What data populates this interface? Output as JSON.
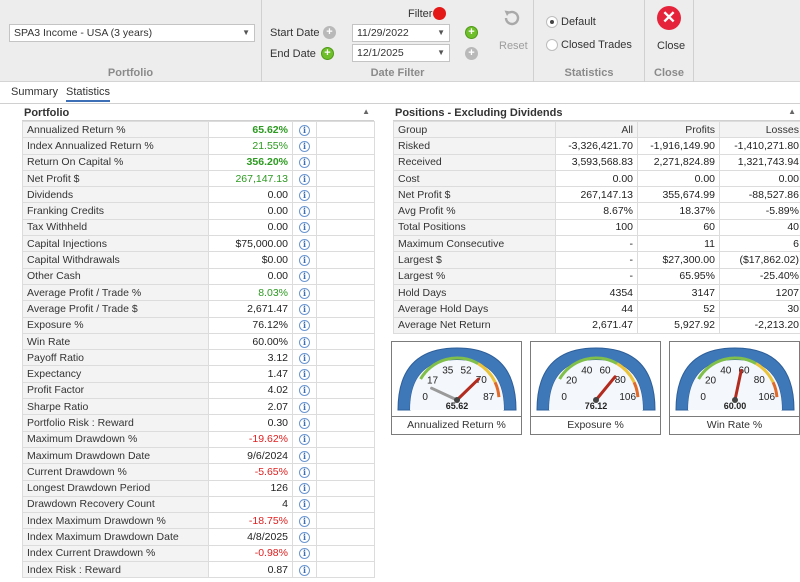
{
  "ribbon": {
    "portfolio": {
      "selected": "SPA3 Income - USA (3 years)",
      "group_label": "Portfolio"
    },
    "date_filter": {
      "filter_label": "Filter",
      "start_label": "Start Date",
      "start_value": "11/29/2022",
      "end_label": "End Date",
      "end_value": "12/1/2025",
      "reset_label": "Reset",
      "group_label": "Date Filter"
    },
    "statistics": {
      "default_label": "Default",
      "closed_label": "Closed Trades",
      "group_label": "Statistics"
    },
    "close": {
      "button_label": "Close",
      "group_label": "Close"
    }
  },
  "tabs": [
    "Summary",
    "Statistics"
  ],
  "portfolio_panel": {
    "title": "Portfolio",
    "rows": [
      {
        "name": "Annualized Return %",
        "value": "65.62%",
        "color": "#2c9a20",
        "bold": true
      },
      {
        "name": "Index Annualized Return %",
        "value": "21.55%",
        "color": "#2c9a20",
        "bold": false
      },
      {
        "name": "Return On Capital %",
        "value": "356.20%",
        "color": "#2c9a20",
        "bold": true
      },
      {
        "name": "Net Profit $",
        "value": "267,147.13",
        "color": "#2c9a20",
        "bold": false
      },
      {
        "name": "Dividends",
        "value": "0.00",
        "color": "#222222",
        "bold": false
      },
      {
        "name": "Franking Credits",
        "value": "0.00",
        "color": "#222222",
        "bold": false
      },
      {
        "name": "Tax Withheld",
        "value": "0.00",
        "color": "#222222",
        "bold": false
      },
      {
        "name": "Capital Injections",
        "value": "$75,000.00",
        "color": "#222222",
        "bold": false
      },
      {
        "name": "Capital Withdrawals",
        "value": "$0.00",
        "color": "#222222",
        "bold": false
      },
      {
        "name": "Other Cash",
        "value": "0.00",
        "color": "#222222",
        "bold": false
      },
      {
        "name": "Average Profit / Trade %",
        "value": "8.03%",
        "color": "#2c9a20",
        "bold": false
      },
      {
        "name": "Average Profit / Trade $",
        "value": "2,671.47",
        "color": "#222222",
        "bold": false
      },
      {
        "name": "Exposure %",
        "value": "76.12%",
        "color": "#222222",
        "bold": false
      },
      {
        "name": "Win Rate",
        "value": "60.00%",
        "color": "#222222",
        "bold": false
      },
      {
        "name": "Payoff Ratio",
        "value": "3.12",
        "color": "#222222",
        "bold": false
      },
      {
        "name": "Expectancy",
        "value": "1.47",
        "color": "#222222",
        "bold": false
      },
      {
        "name": "Profit Factor",
        "value": "4.02",
        "color": "#222222",
        "bold": false
      },
      {
        "name": "Sharpe Ratio",
        "value": "2.07",
        "color": "#222222",
        "bold": false
      },
      {
        "name": "Portfolio Risk : Reward",
        "value": "0.30",
        "color": "#222222",
        "bold": false
      },
      {
        "name": "Maximum Drawdown %",
        "value": "-19.62%",
        "color": "#e02020",
        "bold": false
      },
      {
        "name": "Maximum Drawdown Date",
        "value": "9/6/2024",
        "color": "#222222",
        "bold": false
      },
      {
        "name": "Current Drawdown %",
        "value": "-5.65%",
        "color": "#e02020",
        "bold": false
      },
      {
        "name": "Longest Drawdown Period",
        "value": "126",
        "color": "#222222",
        "bold": false
      },
      {
        "name": "Drawdown Recovery Count",
        "value": "4",
        "color": "#222222",
        "bold": false
      },
      {
        "name": "Index Maximum Drawdown %",
        "value": "-18.75%",
        "color": "#e02020",
        "bold": false
      },
      {
        "name": "Index Maximum Drawdown Date",
        "value": "4/8/2025",
        "color": "#222222",
        "bold": false
      },
      {
        "name": "Index Current Drawdown %",
        "value": "-0.98%",
        "color": "#e02020",
        "bold": false
      },
      {
        "name": "Index Risk : Reward",
        "value": "0.87",
        "color": "#222222",
        "bold": false
      }
    ]
  },
  "positions_panel": {
    "title": "Positions - Excluding Dividends",
    "columns": [
      "Group",
      "All",
      "Profits",
      "Losses"
    ],
    "rows": [
      {
        "name": "Risked",
        "all": "-3,326,421.70",
        "profits": "-1,916,149.90",
        "losses": "-1,410,271.80"
      },
      {
        "name": "Received",
        "all": "3,593,568.83",
        "profits": "2,271,824.89",
        "losses": "1,321,743.94"
      },
      {
        "name": "Cost",
        "all": "0.00",
        "profits": "0.00",
        "losses": "0.00"
      },
      {
        "name": "Net Profit $",
        "all": "267,147.13",
        "profits": "355,674.99",
        "losses": "-88,527.86"
      },
      {
        "name": "Avg Profit %",
        "all": "8.67%",
        "profits": "18.37%",
        "losses": "-5.89%"
      },
      {
        "name": "Total Positions",
        "all": "100",
        "profits": "60",
        "losses": "40"
      },
      {
        "name": "Maximum Consecutive",
        "all": "-",
        "profits": "11",
        "losses": "6"
      },
      {
        "name": "Largest $",
        "all": "-",
        "profits": "$27,300.00",
        "losses": "($17,862.02)"
      },
      {
        "name": "Largest %",
        "all": "-",
        "profits": "65.95%",
        "losses": "-25.40%"
      },
      {
        "name": "Hold Days",
        "all": "4354",
        "profits": "3147",
        "losses": "1207"
      },
      {
        "name": "Average Hold Days",
        "all": "44",
        "profits": "52",
        "losses": "30"
      },
      {
        "name": "Average Net Return",
        "all": "2,671.47",
        "profits": "5,927.92",
        "losses": "-2,213.20"
      }
    ]
  },
  "gauges": [
    {
      "caption": "Annualized Return %",
      "value": 65.62,
      "display": "65.62",
      "min": 0,
      "max": 87,
      "ticks": [
        "0",
        "17",
        "35",
        "52",
        "70",
        "87"
      ]
    },
    {
      "caption": "Exposure %",
      "value": 76.12,
      "display": "76.12",
      "min": 0,
      "max": 106,
      "ticks": [
        "0",
        "20",
        "40",
        "60",
        "80",
        "106"
      ]
    },
    {
      "caption": "Win Rate %",
      "value": 60.0,
      "display": "60.00",
      "min": 0,
      "max": 106,
      "ticks": [
        "0",
        "20",
        "40",
        "60",
        "80",
        "106"
      ]
    }
  ],
  "colors": {
    "accent": "#3d6fb6",
    "positive": "#2c9a20",
    "negative": "#e02020",
    "filter_dot": "#e51818",
    "close": "#e5243b",
    "gauge_blue": "#3f78b9"
  }
}
